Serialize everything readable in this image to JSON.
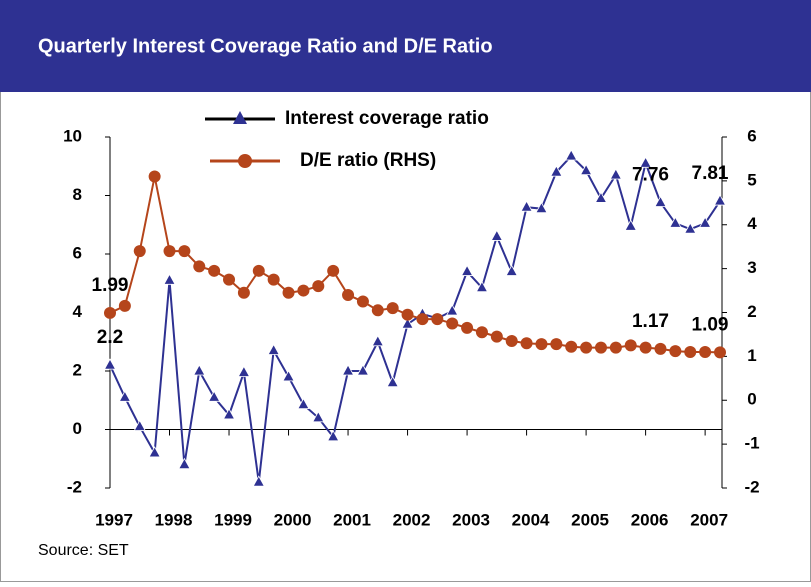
{
  "chart_data": {
    "type": "line",
    "title": "Quarterly Interest Coverage Ratio and D/E Ratio",
    "source": "Source: SET",
    "x": [
      1997,
      1997.25,
      1997.5,
      1997.75,
      1998,
      1998.25,
      1998.5,
      1998.75,
      1999,
      1999.25,
      1999.5,
      1999.75,
      2000,
      2000.25,
      2000.5,
      2000.75,
      2001,
      2001.25,
      2001.5,
      2001.75,
      2002,
      2002.25,
      2002.5,
      2002.75,
      2003,
      2003.25,
      2003.5,
      2003.75,
      2004,
      2004.25,
      2004.5,
      2004.75,
      2005,
      2005.25,
      2005.5,
      2005.75,
      2006,
      2006.25,
      2006.5,
      2006.75,
      2007,
      2007.25
    ],
    "series": [
      {
        "name": "Interest coverage ratio",
        "color": "#2e3192",
        "marker": "triangle",
        "axis": "y",
        "values": [
          2.2,
          1.1,
          0.1,
          -0.8,
          5.1,
          -1.2,
          2,
          1.1,
          0.5,
          1.95,
          -1.8,
          2.7,
          1.8,
          0.85,
          0.4,
          -0.25,
          2,
          2,
          3,
          1.6,
          3.6,
          3.95,
          3.8,
          4.05,
          5.4,
          4.85,
          6.6,
          5.4,
          7.6,
          7.55,
          8.8,
          9.35,
          8.85,
          7.9,
          8.7,
          6.95,
          9.1,
          7.76,
          7.05,
          6.85,
          7.05,
          7.81
        ],
        "data_labels": [
          0,
          37,
          41
        ]
      },
      {
        "name": "D/E ratio (RHS)",
        "color": "#b5451b",
        "marker": "circle",
        "axis": "y2",
        "values": [
          1.99,
          2.15,
          3.4,
          5.1,
          3.4,
          3.4,
          3.05,
          2.95,
          2.75,
          2.45,
          2.95,
          2.75,
          2.45,
          2.5,
          2.6,
          2.95,
          2.4,
          2.25,
          2.05,
          2.1,
          1.95,
          1.85,
          1.85,
          1.75,
          1.65,
          1.55,
          1.45,
          1.35,
          1.3,
          1.28,
          1.28,
          1.22,
          1.2,
          1.2,
          1.2,
          1.25,
          1.2,
          1.17,
          1.12,
          1.1,
          1.1,
          1.09
        ],
        "data_labels": [
          0,
          37,
          41
        ]
      }
    ],
    "xlim": [
      1997,
      2007.25
    ],
    "xticks": [
      1997,
      1998,
      1999,
      2000,
      2001,
      2002,
      2003,
      2004,
      2005,
      2006,
      2007
    ],
    "ylim": [
      -2,
      10
    ],
    "yticks": [
      -2,
      0,
      2,
      4,
      6,
      8,
      10
    ],
    "y2lim": [
      -2,
      6
    ],
    "y2ticks": [
      -2,
      -1,
      0,
      1,
      2,
      3,
      4,
      5,
      6
    ]
  }
}
